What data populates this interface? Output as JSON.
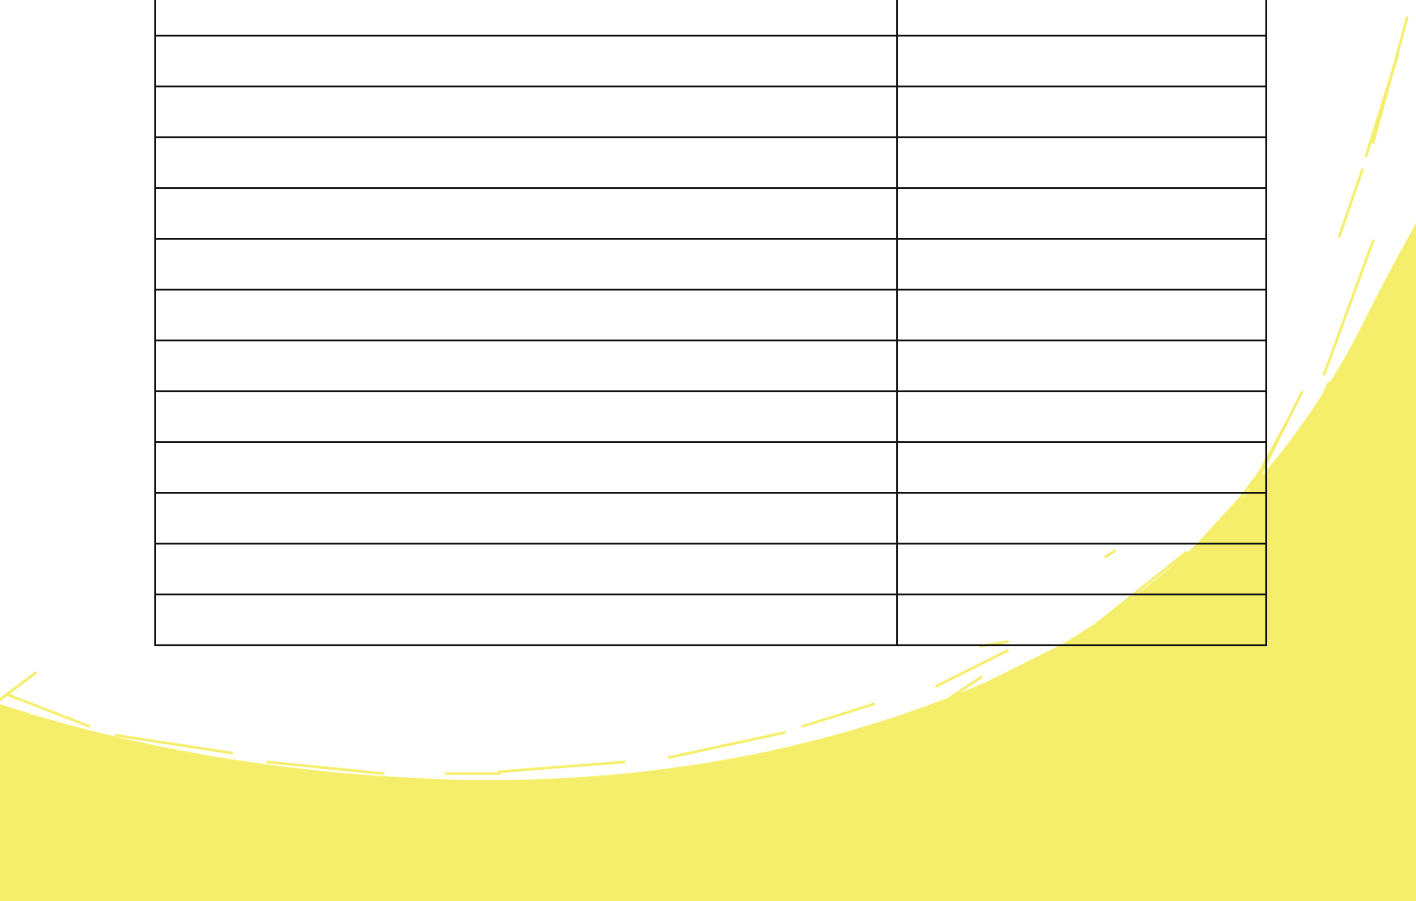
{
  "colors": {
    "background": "#ffffff",
    "accent_brush": "#f5ee6b",
    "table_lines": "#111111"
  },
  "table": {
    "columns": 2,
    "rows": [
      [
        "",
        ""
      ],
      [
        "",
        ""
      ],
      [
        "",
        ""
      ],
      [
        "",
        ""
      ],
      [
        "",
        ""
      ],
      [
        "",
        ""
      ],
      [
        "",
        ""
      ],
      [
        "",
        ""
      ],
      [
        "",
        ""
      ],
      [
        "",
        ""
      ],
      [
        "",
        ""
      ],
      [
        "",
        ""
      ],
      [
        "",
        ""
      ]
    ]
  }
}
